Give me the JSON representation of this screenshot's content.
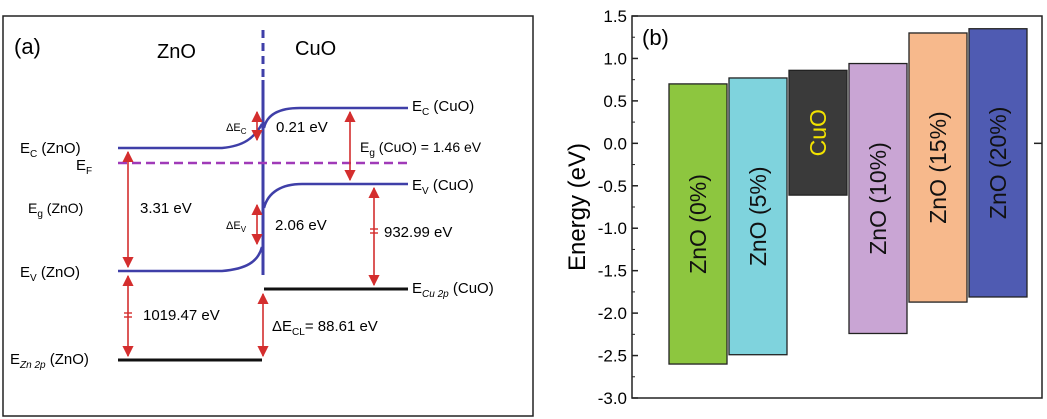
{
  "panel_a": {
    "panel_label": "(a)",
    "left_material": "ZnO",
    "right_material": "CuO",
    "labels": {
      "ec_zno": "E",
      "ec_zno_sub": "C",
      "ec_zno_tail": " (ZnO)",
      "ef": "E",
      "ef_sub": "F",
      "ec_cuo": "E",
      "ec_cuo_sub": "C",
      "ec_cuo_tail": " (CuO)",
      "ev_cuo": "E",
      "ev_cuo_sub": "V",
      "ev_cuo_tail": " (CuO)",
      "eg_zno": "E",
      "eg_zno_sub": "g",
      "eg_zno_tail": " (ZnO)",
      "eg_zno_value": "3.31 eV",
      "eg_cuo": "E",
      "eg_cuo_sub": "g",
      "eg_cuo_tail": " (CuO) = 1.46 eV",
      "dec": "ΔE",
      "dec_sub": "C",
      "dec_value": "0.21 eV",
      "dev": "ΔE",
      "dev_sub": "V",
      "dev_value": "2.06 eV",
      "ev_zno": "E",
      "ev_zno_sub": "V",
      "ev_zno_tail": " (ZnO)",
      "cuo_core_gap": "932.99 eV",
      "zno_core_gap": "1019.47 eV",
      "ecu2p": "E",
      "ecu2p_sub": "Cu 2p",
      "ecu2p_tail": " (CuO)",
      "ezn2p": "E",
      "ezn2p_sub": "Zn 2p",
      "ezn2p_tail": " (ZnO)",
      "decl": "ΔE",
      "decl_sub": "CL",
      "decl_value": "= 88.61 eV"
    },
    "colors": {
      "band": "#3f3fa8",
      "arrow": "#d42e2e",
      "fermi": "#a03ab8",
      "core": "#111111"
    }
  },
  "panel_b": {
    "panel_label": "(b)"
  },
  "chart_data": {
    "type": "bar",
    "ylabel": "Energy (eV)",
    "ylim": [
      -3.0,
      1.5
    ],
    "yticks": [
      "1.5",
      "1.0",
      "0.5",
      "0.0",
      "-0.5",
      "-1.0",
      "-1.5",
      "-2.0",
      "-2.5",
      "-3.0"
    ],
    "ytick_values": [
      1.5,
      1.0,
      0.5,
      0.0,
      -0.5,
      -1.0,
      -1.5,
      -2.0,
      -2.5,
      -3.0
    ],
    "bars": [
      {
        "label": "ZnO (0%)",
        "top": 0.7,
        "bottom": -2.6,
        "color": "#8dc63f",
        "text_color": "#111111"
      },
      {
        "label": "ZnO (5%)",
        "top": 0.77,
        "bottom": -2.49,
        "color": "#7fd3dd",
        "text_color": "#111111"
      },
      {
        "label": "CuO",
        "top": 0.86,
        "bottom": -0.61,
        "color": "#3a3a3a",
        "text_color": "#f2e200"
      },
      {
        "label": "ZnO (10%)",
        "top": 0.94,
        "bottom": -2.24,
        "color": "#c9a5d4",
        "text_color": "#111111"
      },
      {
        "label": "ZnO (15%)",
        "top": 1.3,
        "bottom": -1.87,
        "color": "#f7b98c",
        "text_color": "#111111"
      },
      {
        "label": "ZnO (20%)",
        "top": 1.35,
        "bottom": -1.81,
        "color": "#4f5bb2",
        "text_color": "#111111"
      }
    ]
  }
}
